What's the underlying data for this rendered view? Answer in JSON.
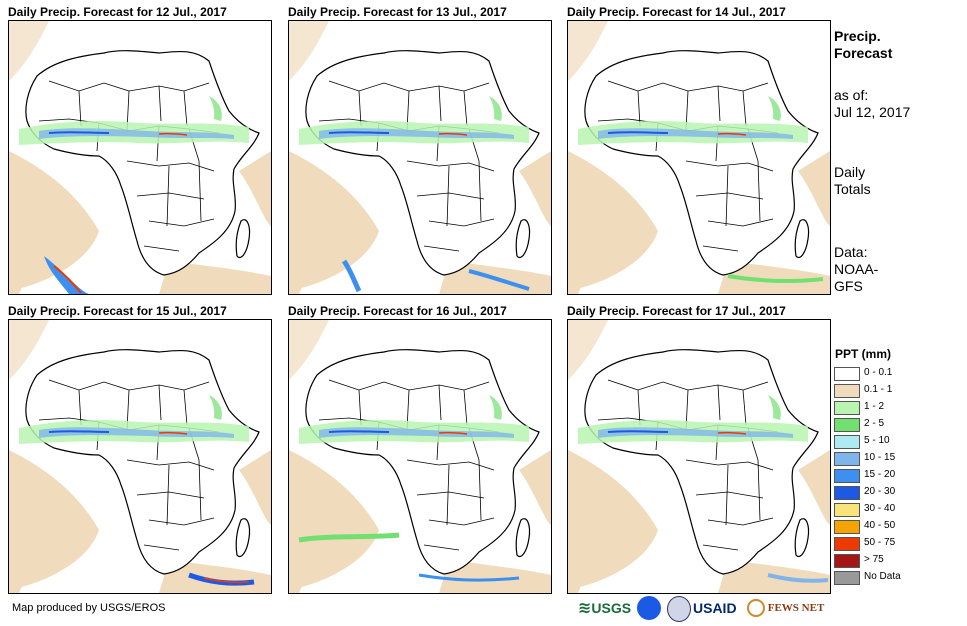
{
  "panels": [
    {
      "title": "Daily Precip. Forecast for 12 Jul., 2017"
    },
    {
      "title": "Daily Precip. Forecast for 13 Jul., 2017"
    },
    {
      "title": "Daily Precip. Forecast for 14 Jul., 2017"
    },
    {
      "title": "Daily Precip. Forecast for 15 Jul., 2017"
    },
    {
      "title": "Daily Precip. Forecast for 16 Jul., 2017"
    },
    {
      "title": "Daily Precip. Forecast for 17 Jul., 2017"
    }
  ],
  "side": {
    "heading_line1": "Precip.",
    "heading_line2": "Forecast",
    "asof_label": "as of:",
    "asof_date": "Jul 12, 2017",
    "totals_line1": "Daily",
    "totals_line2": "Totals",
    "data_line1": "Data:",
    "data_line2": "NOAA-",
    "data_line3": "GFS"
  },
  "legend": {
    "title": "PPT (mm)",
    "items": [
      {
        "label": "0 - 0.1",
        "color": "#ffffff"
      },
      {
        "label": "0.1 - 1",
        "color": "#f0dcbc"
      },
      {
        "label": "1 - 2",
        "color": "#b9f4b1"
      },
      {
        "label": "2 - 5",
        "color": "#72e070"
      },
      {
        "label": "5 - 10",
        "color": "#aeeaf2"
      },
      {
        "label": "10 - 15",
        "color": "#7fb5ea"
      },
      {
        "label": "15 - 20",
        "color": "#3d8ff0"
      },
      {
        "label": "20 - 30",
        "color": "#1c5ae6"
      },
      {
        "label": "30 - 40",
        "color": "#f8e47a"
      },
      {
        "label": "40 - 50",
        "color": "#f4a300"
      },
      {
        "label": "50 - 75",
        "color": "#ee3a00"
      },
      {
        "label": "> 75",
        "color": "#a51616"
      },
      {
        "label": "No Data",
        "color": "#999999"
      }
    ]
  },
  "footer": {
    "credit": "Map produced by USGS/EROS"
  },
  "logos": {
    "usgs": "USGS",
    "usaid": "USAID",
    "fewsnet": "FEWS NET"
  }
}
